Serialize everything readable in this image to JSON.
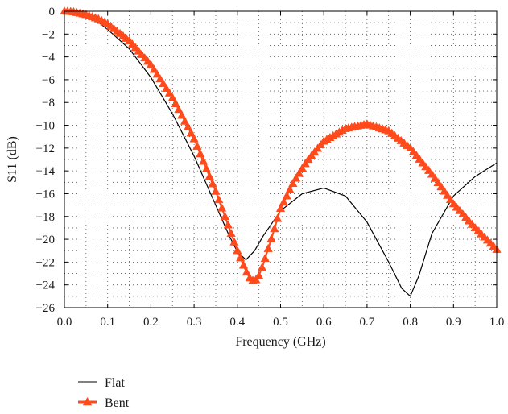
{
  "chart_data": {
    "type": "line",
    "title": "",
    "xlabel": "Frequency (GHz)",
    "ylabel": "S11 (dB)",
    "xlim": [
      0,
      1.0
    ],
    "ylim": [
      -26,
      0
    ],
    "x_ticks": [
      "0.0",
      "0.1",
      "0.2",
      "0.3",
      "0.4",
      "0.5",
      "0.6",
      "0.7",
      "0.8",
      "0.9",
      "1.0"
    ],
    "y_ticks": [
      "0",
      "−2",
      "−4",
      "−6",
      "−8",
      "−10",
      "−12",
      "−14",
      "−16",
      "−18",
      "−20",
      "−22",
      "−24",
      "−26"
    ],
    "grid": true,
    "legend_position": "below",
    "series": [
      {
        "name": "Flat",
        "color": "#000000",
        "marker": "none",
        "x": [
          0.0,
          0.02,
          0.05,
          0.08,
          0.1,
          0.15,
          0.2,
          0.25,
          0.3,
          0.35,
          0.38,
          0.4,
          0.42,
          0.44,
          0.46,
          0.5,
          0.55,
          0.6,
          0.65,
          0.7,
          0.75,
          0.78,
          0.8,
          0.82,
          0.85,
          0.9,
          0.95,
          1.0
        ],
        "values": [
          0,
          -0.1,
          -0.4,
          -1.0,
          -1.6,
          -3.3,
          -5.8,
          -9.0,
          -12.7,
          -17.0,
          -19.6,
          -21.1,
          -21.8,
          -21.0,
          -19.7,
          -17.5,
          -16.0,
          -15.5,
          -16.2,
          -18.5,
          -22.0,
          -24.3,
          -25.0,
          -23.2,
          -19.5,
          -16.2,
          -14.5,
          -13.3
        ]
      },
      {
        "name": "Bent",
        "color": "#ff4a1c",
        "marker": "triangle",
        "x": [
          0.0,
          0.02,
          0.05,
          0.08,
          0.1,
          0.15,
          0.2,
          0.25,
          0.3,
          0.35,
          0.38,
          0.4,
          0.42,
          0.43,
          0.44,
          0.45,
          0.46,
          0.48,
          0.5,
          0.53,
          0.56,
          0.6,
          0.65,
          0.7,
          0.75,
          0.8,
          0.85,
          0.9,
          0.95,
          1.0
        ],
        "values": [
          0,
          -0.05,
          -0.3,
          -0.7,
          -1.1,
          -2.6,
          -4.7,
          -7.6,
          -11.2,
          -15.8,
          -18.9,
          -21.0,
          -22.8,
          -23.5,
          -23.7,
          -23.2,
          -22.2,
          -19.8,
          -17.3,
          -15.0,
          -13.2,
          -11.4,
          -10.3,
          -9.9,
          -10.5,
          -12.0,
          -14.3,
          -16.9,
          -19.0,
          -20.9
        ]
      }
    ]
  }
}
